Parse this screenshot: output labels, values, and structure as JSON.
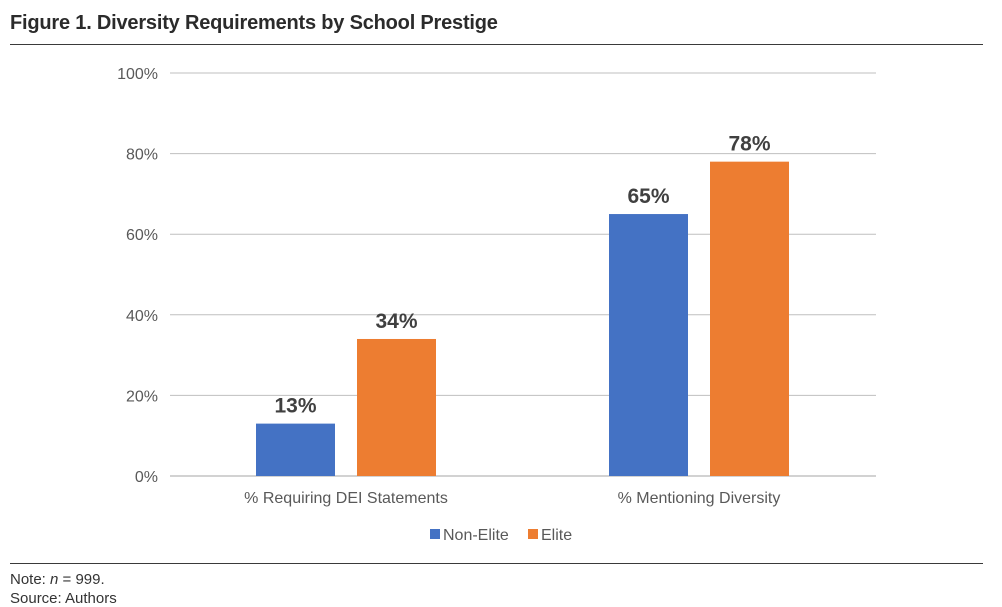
{
  "figure": {
    "title": "Figure 1. Diversity Requirements by School Prestige",
    "note_prefix": "Note: ",
    "note_var": "n",
    "note_suffix": " = 999.",
    "source": "Source: Authors"
  },
  "chart_data": {
    "type": "bar",
    "title": "Figure 1. Diversity Requirements by School Prestige",
    "categories": [
      "% Requiring DEI Statements",
      "% Mentioning Diversity"
    ],
    "series": [
      {
        "name": "Non-Elite",
        "values": [
          13,
          65
        ],
        "labels": [
          "13%",
          "65%"
        ],
        "color": "#4472c4"
      },
      {
        "name": "Elite",
        "values": [
          34,
          78
        ],
        "labels": [
          "34%",
          "78%"
        ],
        "color": "#ed7d31"
      }
    ],
    "ylim": [
      0,
      100
    ],
    "yticks": [
      0,
      20,
      40,
      60,
      80,
      100
    ],
    "ytick_labels": [
      "0%",
      "20%",
      "40%",
      "60%",
      "80%",
      "100%"
    ],
    "xlabel": "",
    "ylabel": "",
    "grid": true,
    "legend": "bottom-center",
    "gridline_color": "#bfbfbf"
  }
}
